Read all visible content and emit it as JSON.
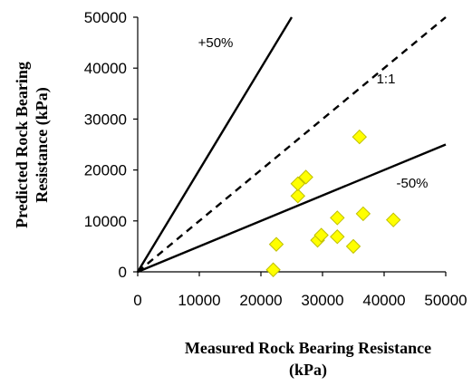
{
  "chart_data": {
    "type": "scatter",
    "xlabel_lines": [
      "Measured Rock Bearing Resistance",
      "(kPa)"
    ],
    "ylabel_lines": [
      "Predicted  Rock Bearing",
      "Resistance (kPa)"
    ],
    "xlim": [
      0,
      50000
    ],
    "ylim": [
      0,
      50000
    ],
    "x_ticks": [
      0,
      10000,
      20000,
      30000,
      40000,
      50000
    ],
    "y_ticks": [
      0,
      10000,
      20000,
      30000,
      40000,
      50000
    ],
    "x_tick_labels": [
      "0",
      "10000",
      "20000",
      "30000",
      "40000",
      "50000"
    ],
    "y_tick_labels": [
      "0",
      "10000",
      "20000",
      "30000",
      "40000",
      "50000"
    ],
    "grid": false,
    "reference_lines": [
      {
        "label": "+50%",
        "slope": 2.0,
        "style": "solid"
      },
      {
        "label": "1:1",
        "slope": 1.0,
        "style": "dashed"
      },
      {
        "label": "-50%",
        "slope": 0.5,
        "style": "solid"
      }
    ],
    "marker_color": "#ffff00",
    "marker_stroke": "#bfbf00",
    "points": [
      {
        "x": 22000,
        "y": 400
      },
      {
        "x": 22500,
        "y": 5400
      },
      {
        "x": 26000,
        "y": 14900
      },
      {
        "x": 26000,
        "y": 17300
      },
      {
        "x": 27300,
        "y": 18600
      },
      {
        "x": 29200,
        "y": 6200
      },
      {
        "x": 29800,
        "y": 7200
      },
      {
        "x": 32400,
        "y": 6900
      },
      {
        "x": 32400,
        "y": 10600
      },
      {
        "x": 35000,
        "y": 5000
      },
      {
        "x": 36000,
        "y": 26500
      },
      {
        "x": 36600,
        "y": 11400
      },
      {
        "x": 41500,
        "y": 10200
      }
    ]
  }
}
